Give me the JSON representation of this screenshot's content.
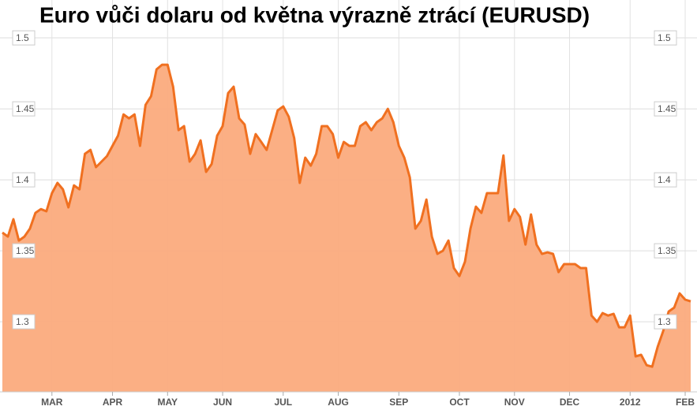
{
  "chart_data": {
    "type": "area",
    "title": "Euro vůči dolaru od května výrazně ztrácí (EURUSD)",
    "categories": [
      null,
      null,
      null,
      null,
      null,
      null,
      null,
      null,
      null,
      "MAR",
      null,
      null,
      null,
      null,
      null,
      null,
      null,
      null,
      null,
      null,
      "APR",
      null,
      null,
      null,
      null,
      null,
      null,
      null,
      null,
      null,
      "MAY",
      null,
      null,
      null,
      null,
      null,
      null,
      null,
      null,
      null,
      "JUN",
      null,
      null,
      null,
      null,
      null,
      null,
      null,
      null,
      null,
      null,
      "JUL",
      null,
      null,
      null,
      null,
      null,
      null,
      null,
      null,
      null,
      "AUG",
      null,
      null,
      null,
      null,
      null,
      null,
      null,
      null,
      null,
      null,
      "SEP",
      null,
      null,
      null,
      null,
      null,
      null,
      null,
      null,
      null,
      null,
      "OCT",
      null,
      null,
      null,
      null,
      null,
      null,
      null,
      null,
      null,
      "NOV",
      null,
      null,
      null,
      null,
      null,
      null,
      null,
      null,
      null,
      "DEC",
      null,
      null,
      null,
      null,
      null,
      null,
      null,
      null,
      null,
      null,
      "2012",
      null,
      null,
      null,
      null,
      null,
      null,
      null,
      null,
      null,
      "FEB",
      null
    ],
    "values": [
      1.3628,
      1.36,
      1.3722,
      1.3572,
      1.36,
      1.3656,
      1.3767,
      1.3794,
      1.3778,
      1.3906,
      1.3978,
      1.3933,
      1.3806,
      1.3961,
      1.3933,
      1.4183,
      1.4211,
      1.4089,
      1.4128,
      1.4167,
      1.4239,
      1.4311,
      1.4461,
      1.4433,
      1.4461,
      1.4239,
      1.4528,
      1.4589,
      1.4778,
      1.4811,
      1.4811,
      1.4656,
      1.435,
      1.4378,
      1.4128,
      1.4183,
      1.4278,
      1.4056,
      1.4111,
      1.4311,
      1.4378,
      1.4611,
      1.4656,
      1.4433,
      1.4389,
      1.4183,
      1.4322,
      1.4267,
      1.4211,
      1.435,
      1.4489,
      1.4517,
      1.4444,
      1.4294,
      1.3978,
      1.4156,
      1.41,
      1.4183,
      1.4378,
      1.4378,
      1.4322,
      1.4156,
      1.4267,
      1.4239,
      1.4239,
      1.4378,
      1.4406,
      1.435,
      1.4406,
      1.4433,
      1.45,
      1.4406,
      1.4239,
      1.4156,
      1.4017,
      1.3656,
      1.3711,
      1.3861,
      1.36,
      1.3478,
      1.35,
      1.3572,
      1.3378,
      1.3322,
      1.3422,
      1.3656,
      1.3811,
      1.3767,
      1.3906,
      1.3906,
      1.3906,
      1.4172,
      1.3711,
      1.3794,
      1.3739,
      1.3544,
      1.3756,
      1.3544,
      1.3478,
      1.3489,
      1.3478,
      1.335,
      1.3406,
      1.3406,
      1.3406,
      1.3378,
      1.3378,
      1.3044,
      1.3,
      1.3061,
      1.3044,
      1.3056,
      1.2961,
      1.2961,
      1.3044,
      1.2756,
      1.2767,
      1.2694,
      1.2683,
      1.2822,
      1.2933,
      1.3072,
      1.31,
      1.32,
      1.3156,
      1.3144
    ],
    "color": "#f07020",
    "area_color": "#fbab7d",
    "ylim": [
      1.2506,
      1.5267
    ],
    "yticks": [
      1.3,
      1.35,
      1.4,
      1.45,
      1.5
    ],
    "grid": true
  }
}
